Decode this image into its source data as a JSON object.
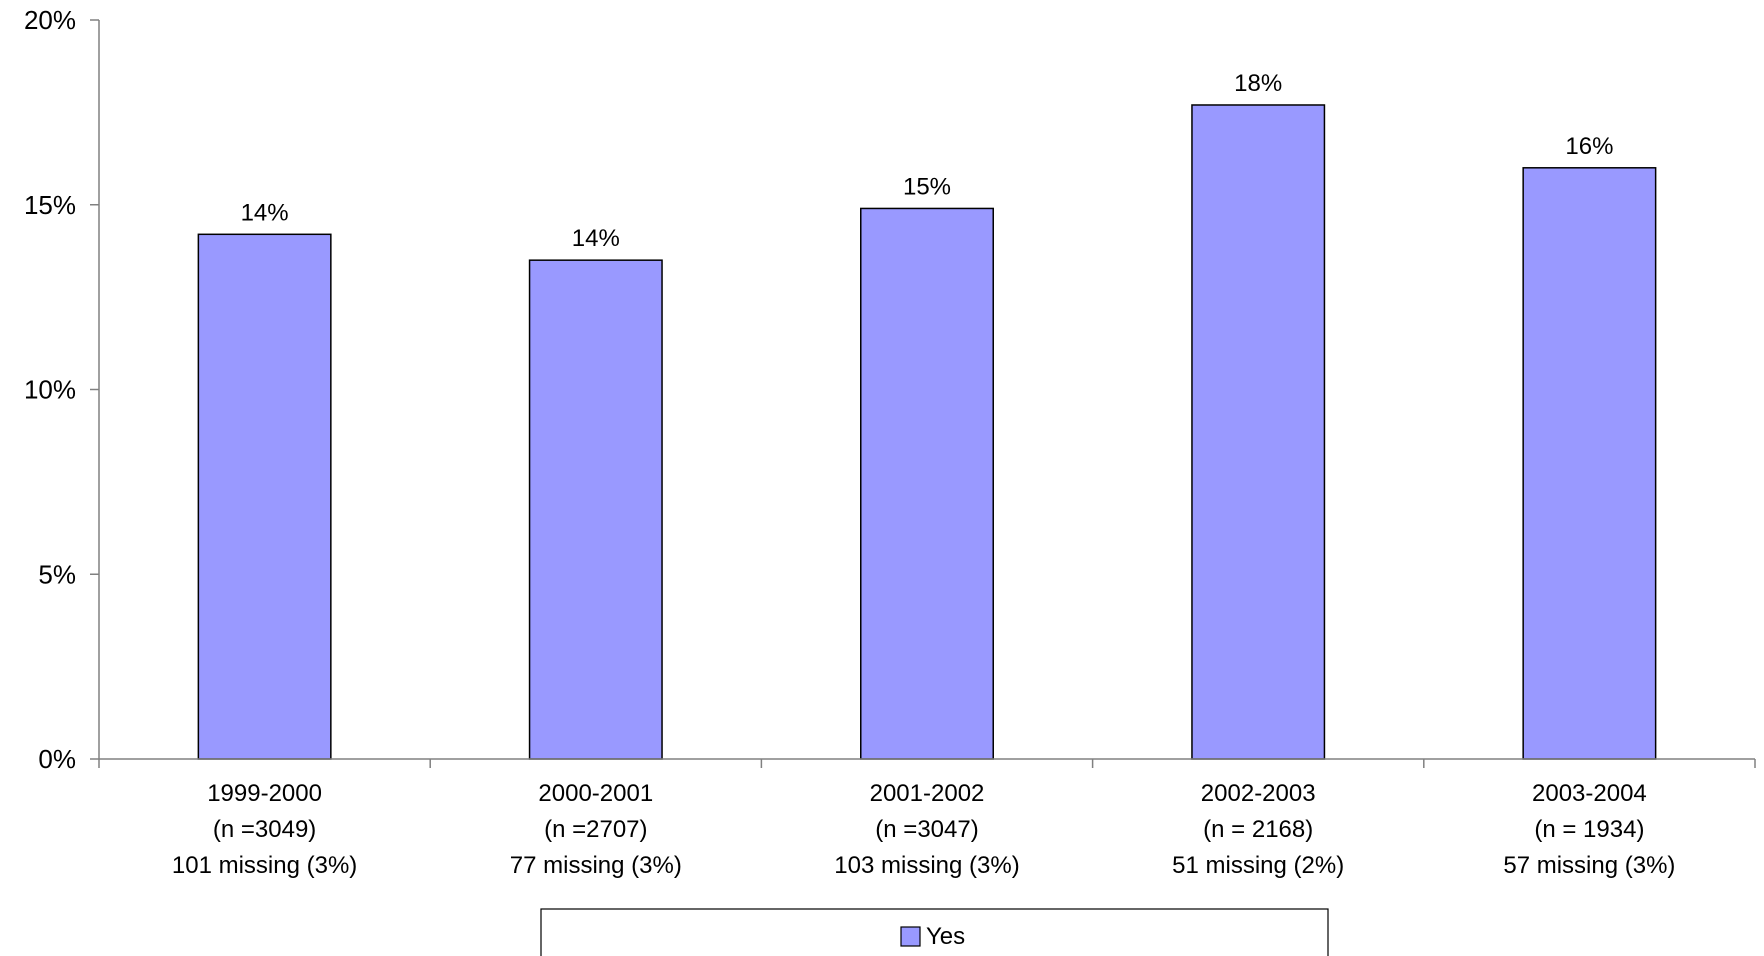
{
  "chart_data": {
    "type": "bar",
    "categories": [
      [
        "1999-2000",
        "(n =3049)",
        "101 missing (3%)"
      ],
      [
        "2000-2001",
        "(n =2707)",
        "77 missing (3%)"
      ],
      [
        "2001-2002",
        "(n =3047)",
        "103 missing (3%)"
      ],
      [
        "2002-2003",
        "(n = 2168)",
        "51 missing (2%)"
      ],
      [
        "2003-2004",
        "(n = 1934)",
        "57 missing (3%)"
      ]
    ],
    "series": [
      {
        "name": "Yes",
        "values": [
          14.2,
          13.5,
          14.9,
          17.7,
          16.0
        ],
        "labels": [
          "14%",
          "14%",
          "15%",
          "18%",
          "16%"
        ],
        "color": "#9999ff"
      }
    ],
    "ylim": [
      0,
      20
    ],
    "yticks": [
      0,
      5,
      10,
      15,
      20
    ],
    "ytick_labels": [
      "0%",
      "5%",
      "10%",
      "15%",
      "20%"
    ],
    "grid": false,
    "legend_position": "bottom"
  }
}
